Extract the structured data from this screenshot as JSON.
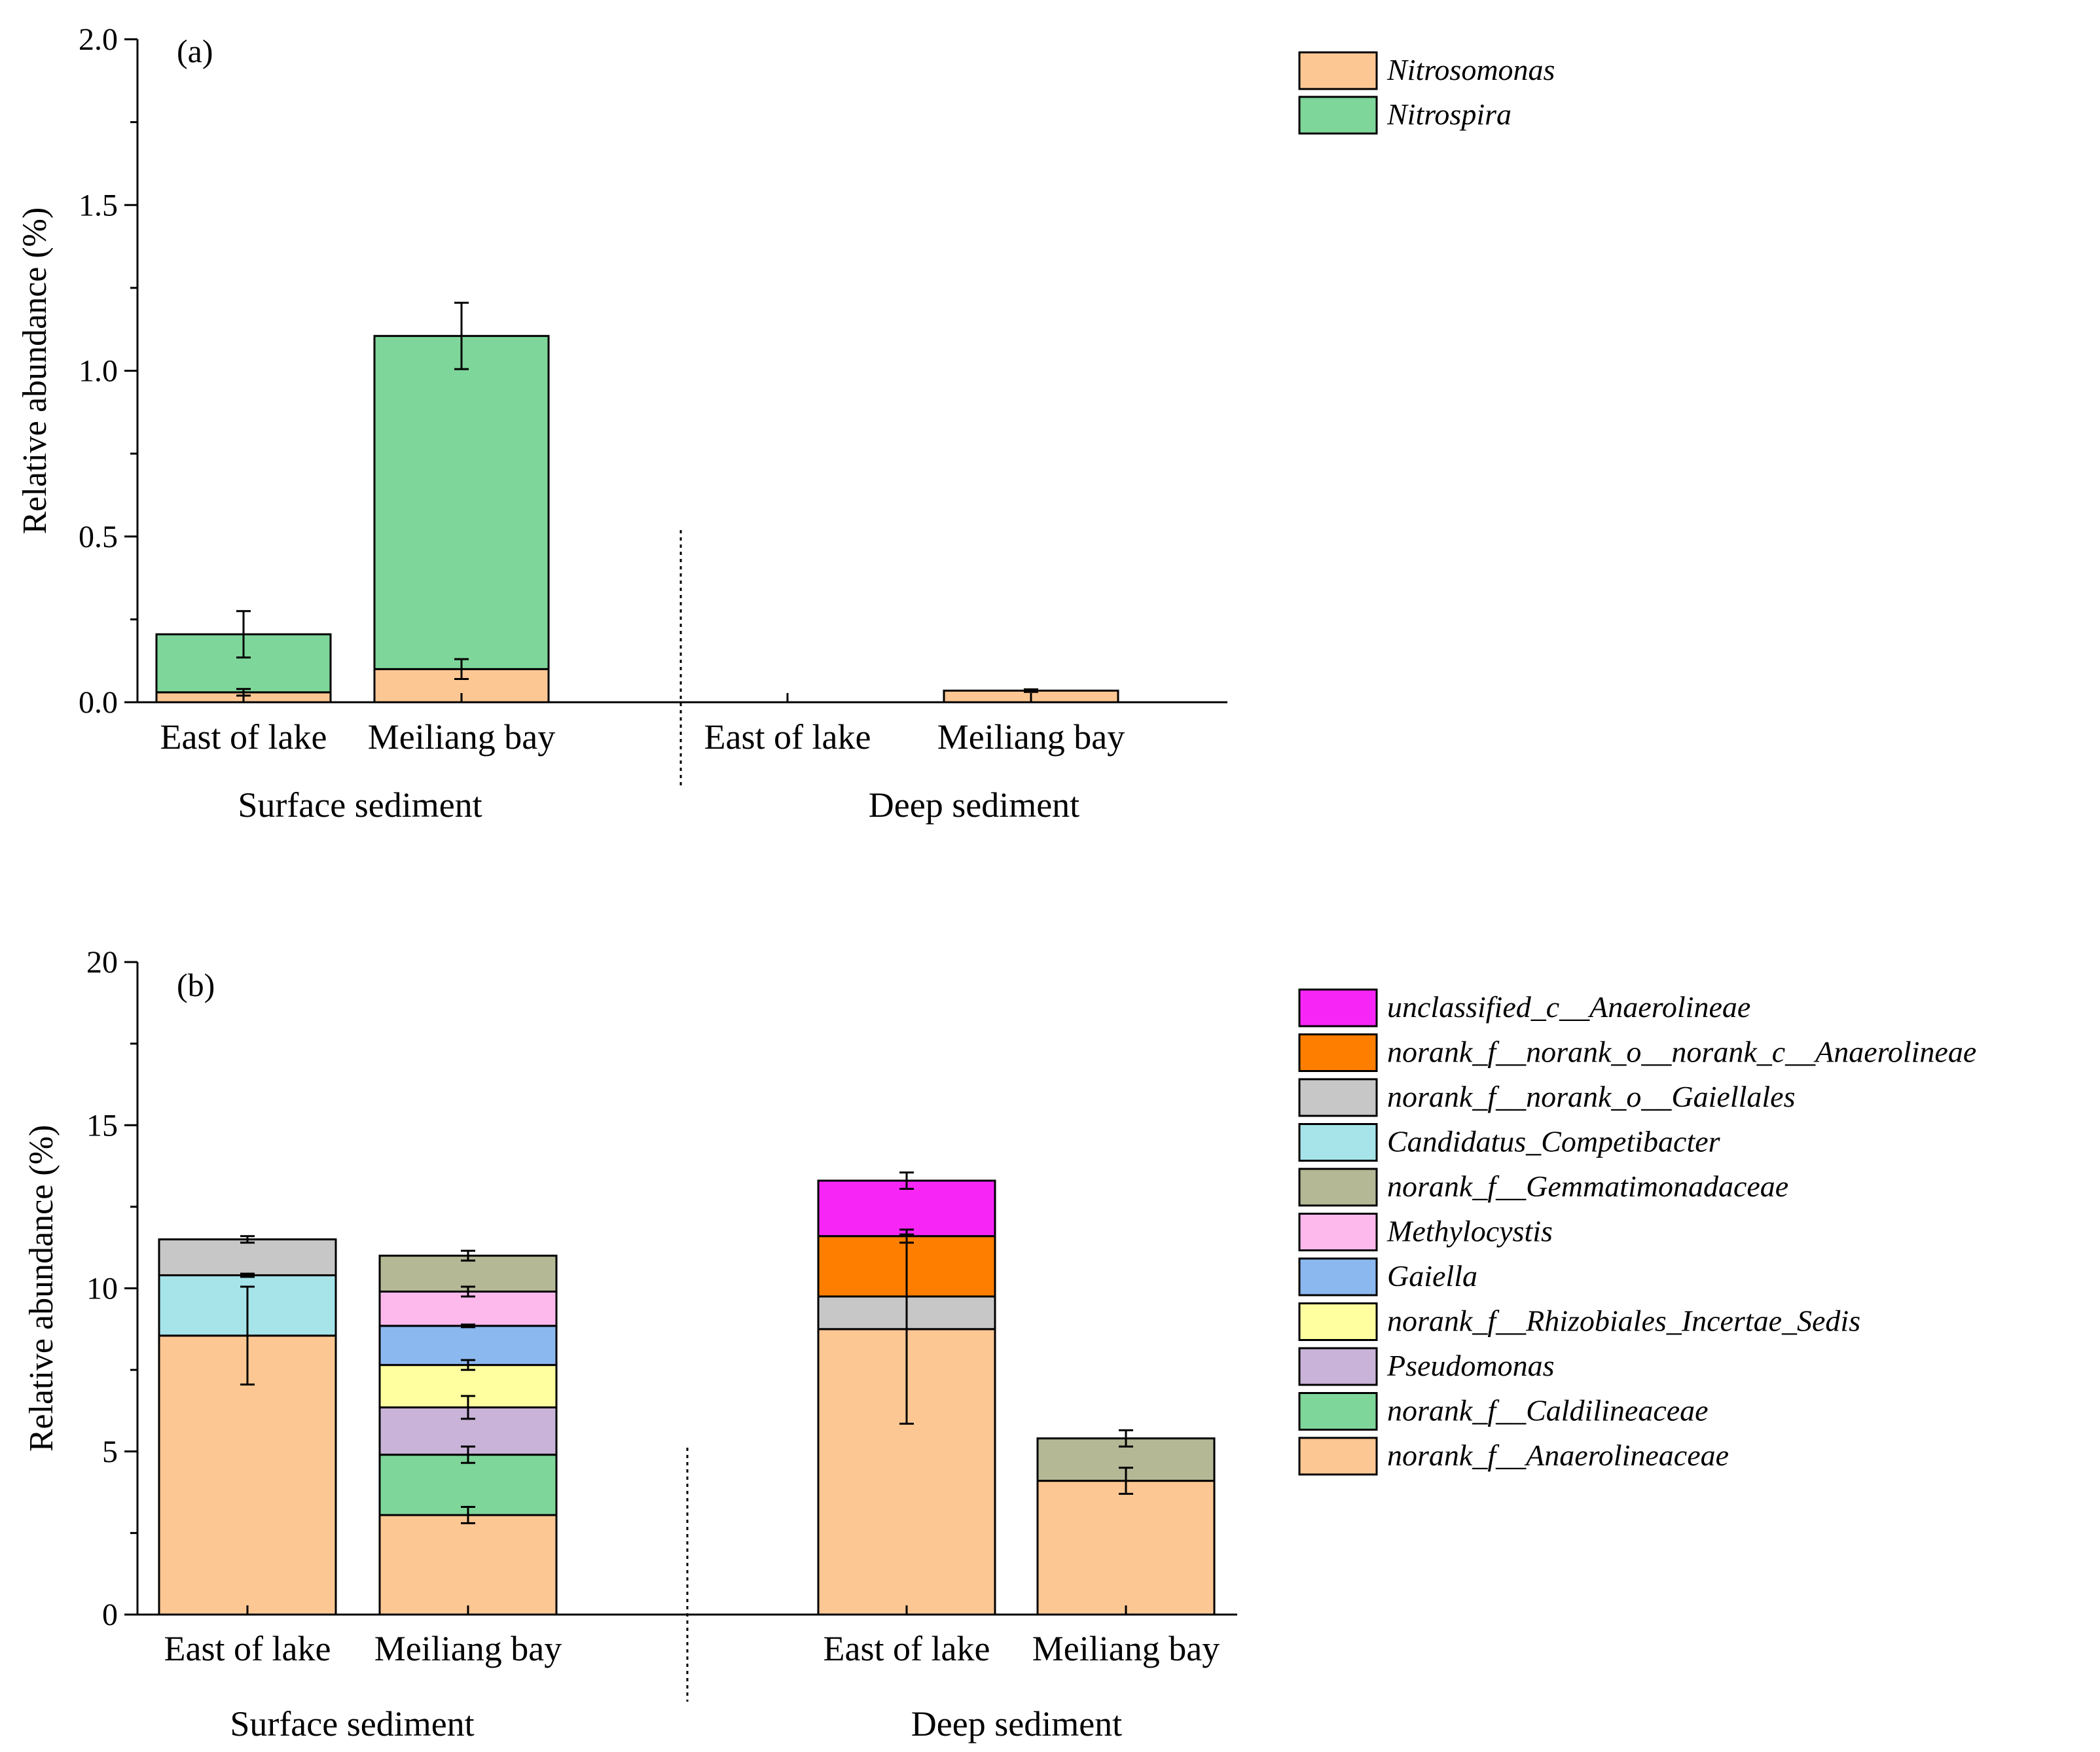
{
  "chart_data": [
    {
      "type": "bar",
      "stacked": true,
      "panel_label": "(a)",
      "ylabel": "Relative abundance (%)",
      "ylim": [
        0,
        2.0
      ],
      "yticks": [
        "0.0",
        "0.5",
        "1.0",
        "1.5",
        "2.0"
      ],
      "categories": [
        "East of lake",
        "Meiliang bay",
        "East of lake",
        "Meiliang bay"
      ],
      "groups": [
        {
          "name": "Surface sediment",
          "categories": [
            0,
            1
          ]
        },
        {
          "name": "Deep sediment",
          "categories": [
            2,
            3
          ]
        }
      ],
      "series": [
        {
          "name": "Nitrosomonas",
          "color": "#FDC793",
          "values": [
            0.03,
            0.1,
            0.0,
            0.035
          ],
          "errors": [
            0.01,
            0.03,
            0.0,
            0.004
          ]
        },
        {
          "name": "Nitrospira",
          "color": "#7ED69A",
          "values": [
            0.175,
            1.005,
            0.0,
            0.0
          ],
          "errors": [
            0.07,
            0.1,
            0.0,
            0.0
          ]
        }
      ],
      "legend": [
        "Nitrosomonas",
        "Nitrospira"
      ],
      "legend_position": "right"
    },
    {
      "type": "bar",
      "stacked": true,
      "panel_label": "(b)",
      "ylabel": "Relative abundance (%)",
      "ylim": [
        0,
        20
      ],
      "yticks": [
        "0",
        "5",
        "10",
        "15",
        "20"
      ],
      "categories": [
        "East of lake",
        "Meiliang bay",
        "East of lake",
        "Meiliang bay"
      ],
      "groups": [
        {
          "name": "Surface sediment",
          "categories": [
            0,
            1
          ]
        },
        {
          "name": "Deep sediment",
          "categories": [
            2,
            3
          ]
        }
      ],
      "series": [
        {
          "name": "norank_f__Anaerolineaceae",
          "color": "#FDC793",
          "values": [
            8.55,
            3.05,
            8.75,
            4.1
          ],
          "errors": [
            1.5,
            0.25,
            2.9,
            0.4
          ]
        },
        {
          "name": "norank_f__Caldilineaceae",
          "color": "#7ED69A",
          "values": [
            0,
            1.85,
            0,
            0
          ],
          "errors": [
            0,
            0.25,
            0,
            0
          ]
        },
        {
          "name": "Pseudomonas",
          "color": "#C9B3D8",
          "values": [
            0,
            1.45,
            0,
            0
          ],
          "errors": [
            0,
            0.35,
            0,
            0
          ]
        },
        {
          "name": "norank_f__Rhizobiales_Incertae_Sedis",
          "color": "#FFFFA0",
          "values": [
            0,
            1.3,
            0,
            0
          ],
          "errors": [
            0,
            0.15,
            0,
            0
          ]
        },
        {
          "name": "Gaiella",
          "color": "#8CB8F0",
          "values": [
            0,
            1.2,
            0,
            0
          ],
          "errors": [
            0,
            0.04,
            0,
            0
          ]
        },
        {
          "name": "Methylocystis",
          "color": "#FDB9EC",
          "values": [
            0,
            1.05,
            0,
            0
          ],
          "errors": [
            0,
            0.15,
            0,
            0
          ]
        },
        {
          "name": "norank_f__Gemmatimonadaceae",
          "color": "#B5B895",
          "values": [
            0,
            1.1,
            0,
            1.3
          ],
          "errors": [
            0,
            0.15,
            0,
            0.25
          ]
        },
        {
          "name": "Candidatus_Competibacter",
          "color": "#A6E4EA",
          "values": [
            1.85,
            0,
            0,
            0
          ],
          "errors": [
            0.05,
            0,
            0,
            0
          ]
        },
        {
          "name": "norank_f__norank_o__Gaiellales",
          "color": "#C7C7C7",
          "values": [
            1.1,
            0,
            1.0,
            0
          ],
          "errors": [
            0.1,
            0,
            0,
            0
          ]
        },
        {
          "name": "norank_f__norank_o__norank_c__Anaerolineae",
          "color": "#FE7E00",
          "values": [
            0,
            0,
            1.85,
            0
          ],
          "errors": [
            0,
            0,
            0.2,
            0
          ]
        },
        {
          "name": "unclassified_c__Anaerolineae",
          "color": "#F726F7",
          "values": [
            0,
            0,
            1.7,
            0
          ],
          "errors": [
            0,
            0,
            0.25,
            0
          ]
        }
      ],
      "legend": [
        "unclassified_c__Anaerolineae",
        "norank_f__norank_o__norank_c__Anaerolineae",
        "norank_f__norank_o__Gaiellales",
        "Candidatus_Competibacter",
        "norank_f__Gemmatimonadaceae",
        "Methylocystis",
        "Gaiella",
        "norank_f__Rhizobiales_Incertae_Sedis",
        "Pseudomonas",
        "norank_f__Caldilineaceae",
        "norank_f__Anaerolineaceae"
      ],
      "legend_position": "right"
    }
  ]
}
